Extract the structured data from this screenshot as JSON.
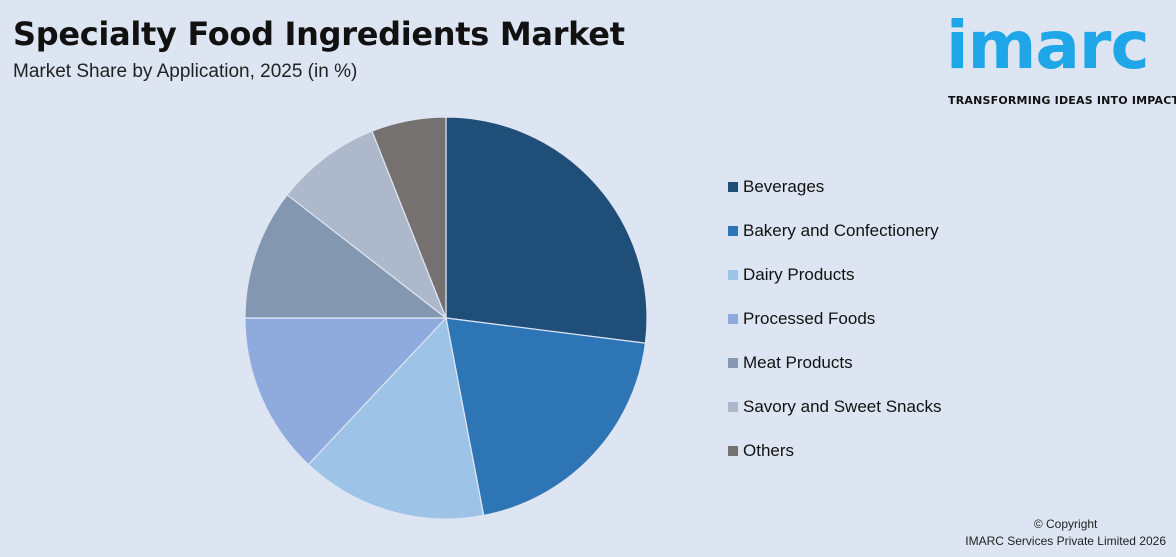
{
  "header": {
    "title": "Specialty Food Ingredients Market",
    "subtitle": "Market Share by Application, 2025 (in %)"
  },
  "logo": {
    "wordmark": "imarc",
    "tagline": "TRANSFORMING IDEAS INTO IMPACT",
    "color": "#1ea6e8"
  },
  "chart_data": {
    "type": "pie",
    "title": "Specialty Food Ingredients Market",
    "subtitle": "Market Share by Application, 2025 (in %)",
    "legend_position": "right",
    "start_angle_deg": 0,
    "direction": "clockwise",
    "categories": [
      "Beverages",
      "Bakery and Confectionery",
      "Dairy Products",
      "Processed Foods",
      "Meat Products",
      "Savory and Sweet Snacks",
      "Others"
    ],
    "values": [
      27,
      20,
      15,
      13,
      10.5,
      8.5,
      6
    ],
    "colors": [
      "#1f4e79",
      "#2e75b6",
      "#9dc3e6",
      "#8faadc",
      "#8497b0",
      "#adb9ca",
      "#767171"
    ]
  },
  "footer": {
    "copyright_line1": "© Copyright",
    "copyright_line2": "IMARC Services Private Limited 2026"
  }
}
